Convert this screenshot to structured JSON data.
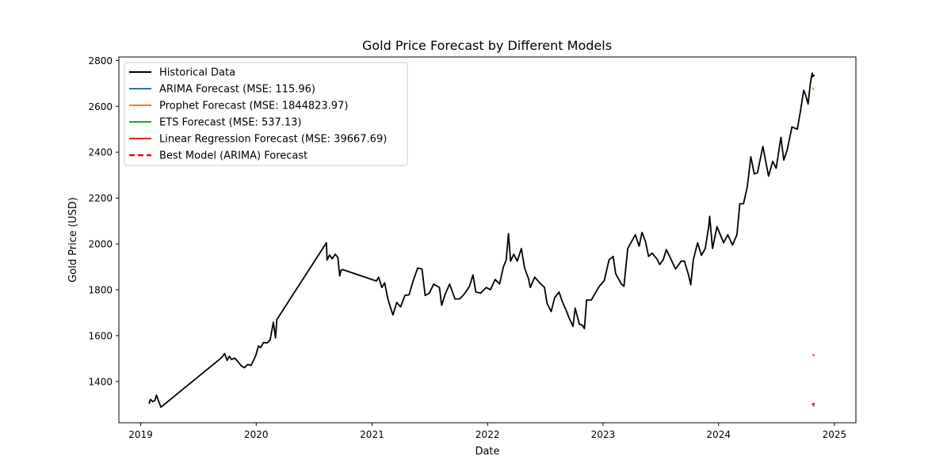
{
  "chart_data": {
    "type": "line",
    "title": "Gold Price Forecast by Different Models",
    "xlabel": "Date",
    "ylabel": "Gold Price (USD)",
    "xlim": [
      "2018-10-24",
      "2025-03-10"
    ],
    "ylim": [
      1220,
      2815
    ],
    "x_ticks": [
      "2019",
      "2020",
      "2021",
      "2022",
      "2023",
      "2024",
      "2025"
    ],
    "y_ticks": [
      1400,
      1600,
      1800,
      2000,
      2200,
      2400,
      2600,
      2800
    ],
    "grid": false,
    "legend_position": "upper-left",
    "series": [
      {
        "name": "Historical Data",
        "color": "#000000",
        "dash": "solid",
        "points": [
          [
            "2019-01-28",
            1305
          ],
          [
            "2019-02-01",
            1322
          ],
          [
            "2019-02-08",
            1312
          ],
          [
            "2019-02-15",
            1318
          ],
          [
            "2019-02-20",
            1340
          ],
          [
            "2019-02-26",
            1316
          ],
          [
            "2019-03-06",
            1288
          ],
          [
            "2019-09-10",
            1500
          ],
          [
            "2019-09-16",
            1508
          ],
          [
            "2019-09-23",
            1522
          ],
          [
            "2019-10-01",
            1492
          ],
          [
            "2019-10-08",
            1510
          ],
          [
            "2019-10-15",
            1496
          ],
          [
            "2019-10-25",
            1502
          ],
          [
            "2019-11-05",
            1486
          ],
          [
            "2019-11-15",
            1468
          ],
          [
            "2019-11-25",
            1460
          ],
          [
            "2019-12-05",
            1474
          ],
          [
            "2019-12-16",
            1470
          ],
          [
            "2019-12-31",
            1515
          ],
          [
            "2020-01-08",
            1555
          ],
          [
            "2020-01-15",
            1548
          ],
          [
            "2020-01-24",
            1570
          ],
          [
            "2020-02-05",
            1568
          ],
          [
            "2020-02-14",
            1582
          ],
          [
            "2020-02-24",
            1658
          ],
          [
            "2020-03-02",
            1590
          ],
          [
            "2020-03-06",
            1670
          ],
          [
            "2020-08-10",
            2005
          ],
          [
            "2020-08-12",
            1930
          ],
          [
            "2020-08-20",
            1952
          ],
          [
            "2020-08-28",
            1935
          ],
          [
            "2020-09-07",
            1955
          ],
          [
            "2020-09-15",
            1940
          ],
          [
            "2020-09-21",
            1860
          ],
          [
            "2020-09-25",
            1885
          ],
          [
            "2020-09-30",
            1888
          ],
          [
            "2021-01-15",
            1838
          ],
          [
            "2021-01-22",
            1855
          ],
          [
            "2021-02-01",
            1810
          ],
          [
            "2021-02-10",
            1830
          ],
          [
            "2021-02-20",
            1760
          ],
          [
            "2021-03-01",
            1720
          ],
          [
            "2021-03-08",
            1690
          ],
          [
            "2021-03-20",
            1745
          ],
          [
            "2021-04-01",
            1725
          ],
          [
            "2021-04-15",
            1775
          ],
          [
            "2021-04-28",
            1778
          ],
          [
            "2021-05-10",
            1835
          ],
          [
            "2021-05-25",
            1895
          ],
          [
            "2021-06-08",
            1890
          ],
          [
            "2021-06-18",
            1775
          ],
          [
            "2021-07-01",
            1785
          ],
          [
            "2021-07-15",
            1825
          ],
          [
            "2021-08-02",
            1810
          ],
          [
            "2021-08-09",
            1732
          ],
          [
            "2021-08-20",
            1780
          ],
          [
            "2021-09-03",
            1825
          ],
          [
            "2021-09-20",
            1760
          ],
          [
            "2021-10-05",
            1760
          ],
          [
            "2021-10-20",
            1782
          ],
          [
            "2021-11-05",
            1815
          ],
          [
            "2021-11-16",
            1865
          ],
          [
            "2021-11-25",
            1790
          ],
          [
            "2021-12-10",
            1785
          ],
          [
            "2021-12-28",
            1810
          ],
          [
            "2022-01-10",
            1800
          ],
          [
            "2022-01-25",
            1845
          ],
          [
            "2022-02-08",
            1825
          ],
          [
            "2022-02-20",
            1900
          ],
          [
            "2022-03-01",
            1930
          ],
          [
            "2022-03-08",
            2045
          ],
          [
            "2022-03-15",
            1925
          ],
          [
            "2022-03-25",
            1955
          ],
          [
            "2022-04-05",
            1925
          ],
          [
            "2022-04-18",
            1980
          ],
          [
            "2022-04-28",
            1895
          ],
          [
            "2022-05-10",
            1850
          ],
          [
            "2022-05-16",
            1810
          ],
          [
            "2022-05-30",
            1855
          ],
          [
            "2022-06-15",
            1830
          ],
          [
            "2022-06-30",
            1810
          ],
          [
            "2022-07-08",
            1740
          ],
          [
            "2022-07-21",
            1705
          ],
          [
            "2022-08-01",
            1765
          ],
          [
            "2022-08-15",
            1790
          ],
          [
            "2022-08-25",
            1750
          ],
          [
            "2022-09-05",
            1715
          ],
          [
            "2022-09-15",
            1680
          ],
          [
            "2022-09-28",
            1640
          ],
          [
            "2022-10-05",
            1720
          ],
          [
            "2022-10-18",
            1650
          ],
          [
            "2022-10-28",
            1645
          ],
          [
            "2022-11-03",
            1630
          ],
          [
            "2022-11-10",
            1755
          ],
          [
            "2022-11-25",
            1755
          ],
          [
            "2022-12-05",
            1780
          ],
          [
            "2022-12-20",
            1815
          ],
          [
            "2023-01-05",
            1840
          ],
          [
            "2023-01-20",
            1930
          ],
          [
            "2023-02-02",
            1945
          ],
          [
            "2023-02-10",
            1870
          ],
          [
            "2023-02-28",
            1825
          ],
          [
            "2023-03-08",
            1815
          ],
          [
            "2023-03-20",
            1980
          ],
          [
            "2023-04-05",
            2020
          ],
          [
            "2023-04-13",
            2040
          ],
          [
            "2023-04-25",
            1990
          ],
          [
            "2023-05-04",
            2050
          ],
          [
            "2023-05-15",
            2010
          ],
          [
            "2023-05-25",
            1945
          ],
          [
            "2023-06-05",
            1960
          ],
          [
            "2023-06-20",
            1935
          ],
          [
            "2023-06-29",
            1910
          ],
          [
            "2023-07-10",
            1930
          ],
          [
            "2023-07-20",
            1975
          ],
          [
            "2023-08-03",
            1935
          ],
          [
            "2023-08-18",
            1890
          ],
          [
            "2023-09-05",
            1925
          ],
          [
            "2023-09-15",
            1925
          ],
          [
            "2023-09-28",
            1865
          ],
          [
            "2023-10-05",
            1822
          ],
          [
            "2023-10-13",
            1930
          ],
          [
            "2023-10-27",
            2005
          ],
          [
            "2023-11-08",
            1950
          ],
          [
            "2023-11-20",
            1980
          ],
          [
            "2023-12-01",
            2075
          ],
          [
            "2023-12-04",
            2120
          ],
          [
            "2023-12-13",
            1980
          ],
          [
            "2023-12-27",
            2075
          ],
          [
            "2024-01-05",
            2045
          ],
          [
            "2024-01-17",
            2005
          ],
          [
            "2024-01-30",
            2040
          ],
          [
            "2024-02-14",
            1995
          ],
          [
            "2024-02-28",
            2040
          ],
          [
            "2024-03-08",
            2175
          ],
          [
            "2024-03-20",
            2175
          ],
          [
            "2024-04-01",
            2250
          ],
          [
            "2024-04-12",
            2380
          ],
          [
            "2024-04-23",
            2305
          ],
          [
            "2024-05-03",
            2310
          ],
          [
            "2024-05-20",
            2425
          ],
          [
            "2024-06-07",
            2295
          ],
          [
            "2024-06-20",
            2360
          ],
          [
            "2024-07-01",
            2330
          ],
          [
            "2024-07-16",
            2465
          ],
          [
            "2024-07-25",
            2365
          ],
          [
            "2024-08-05",
            2410
          ],
          [
            "2024-08-20",
            2510
          ],
          [
            "2024-09-06",
            2500
          ],
          [
            "2024-09-16",
            2580
          ],
          [
            "2024-09-26",
            2670
          ],
          [
            "2024-10-03",
            2645
          ],
          [
            "2024-10-10",
            2610
          ],
          [
            "2024-10-17",
            2700
          ],
          [
            "2024-10-23",
            2745
          ],
          [
            "2024-10-25",
            2730
          ],
          [
            "2024-10-29",
            2735
          ]
        ]
      },
      {
        "name": "ARIMA Forecast (MSE: 115.96)",
        "color": "#1f77b4",
        "dash": "solid",
        "points": [
          [
            "2024-10-25",
            1300
          ],
          [
            "2024-10-27",
            1303
          ],
          [
            "2024-10-29",
            1302
          ]
        ]
      },
      {
        "name": "Prophet Forecast (MSE: 1844823.97)",
        "color": "#ff7f0e",
        "dash": "solid",
        "points": [
          [
            "2024-10-25",
            2680
          ],
          [
            "2024-10-27",
            2675
          ],
          [
            "2024-10-29",
            2672
          ]
        ]
      },
      {
        "name": "ETS Forecast (MSE: 537.13)",
        "color": "#2ca02c",
        "dash": "solid",
        "points": [
          [
            "2024-10-25",
            1297
          ],
          [
            "2024-10-27",
            1294
          ],
          [
            "2024-10-29",
            1292
          ]
        ]
      },
      {
        "name": "Linear Regression Forecast (MSE: 39667.69)",
        "color": "#d62728",
        "dash": "solid",
        "points": [
          [
            "2024-10-25",
            1518
          ],
          [
            "2024-10-27",
            1515
          ],
          [
            "2024-10-29",
            1513
          ]
        ]
      },
      {
        "name": "Best Model (ARIMA) Forecast",
        "color": "#ff0000",
        "dash": "dashed",
        "points": [
          [
            "2024-10-25",
            1300
          ],
          [
            "2024-10-27",
            1303
          ],
          [
            "2024-10-29",
            1302
          ]
        ]
      }
    ]
  }
}
